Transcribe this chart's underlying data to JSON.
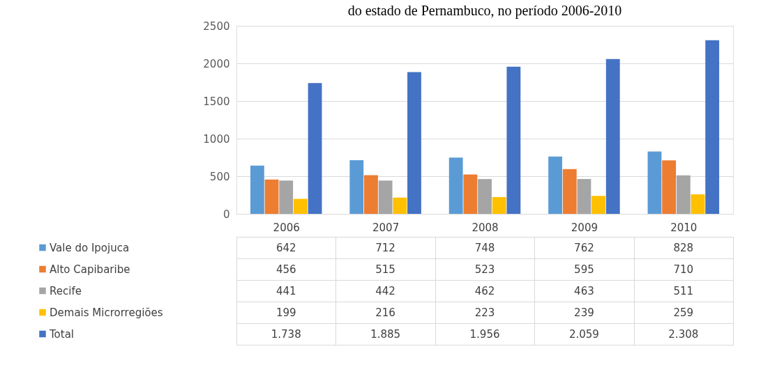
{
  "chart_data": {
    "type": "bar",
    "title": "do estado de Pernambuco, no período 2006-2010",
    "categories": [
      "2006",
      "2007",
      "2008",
      "2009",
      "2010"
    ],
    "series": [
      {
        "name": "Vale do Ipojuca",
        "color": "#5b9bd5",
        "values": [
          642,
          712,
          748,
          762,
          828
        ],
        "value_labels": [
          "642",
          "712",
          "748",
          "762",
          "828"
        ]
      },
      {
        "name": "Alto Capibaribe",
        "color": "#ed7d31",
        "values": [
          456,
          515,
          523,
          595,
          710
        ],
        "value_labels": [
          "456",
          "515",
          "523",
          "595",
          "710"
        ]
      },
      {
        "name": "Recife",
        "color": "#a5a5a5",
        "values": [
          441,
          442,
          462,
          463,
          511
        ],
        "value_labels": [
          "441",
          "442",
          "462",
          "463",
          "511"
        ]
      },
      {
        "name": "Demais Microrregiões",
        "color": "#ffc000",
        "values": [
          199,
          216,
          223,
          239,
          259
        ],
        "value_labels": [
          "199",
          "216",
          "223",
          "239",
          "259"
        ]
      },
      {
        "name": "Total",
        "color": "#4472c4",
        "values": [
          1738,
          1885,
          1956,
          2059,
          2308
        ],
        "value_labels": [
          "1.738",
          "1.885",
          "1.956",
          "2.059",
          "2.308"
        ]
      }
    ],
    "ylim": [
      0,
      2500
    ],
    "yticks": [
      0,
      500,
      1000,
      1500,
      2000,
      2500
    ],
    "grid": "y",
    "legend": "bottom"
  }
}
